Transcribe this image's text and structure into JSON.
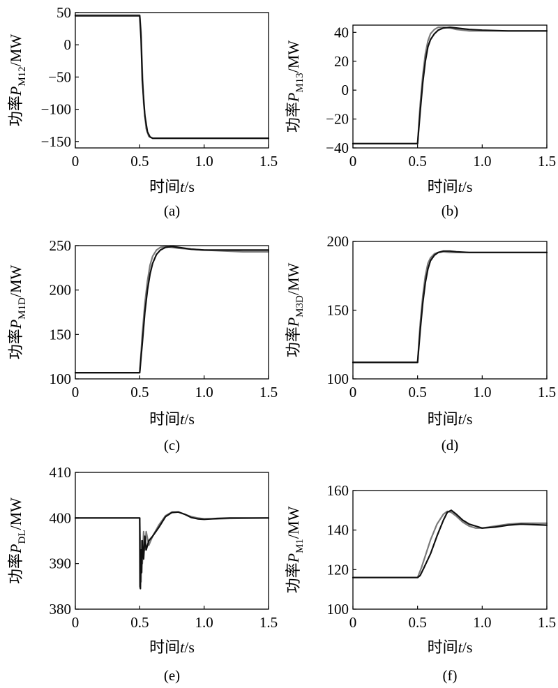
{
  "figure": {
    "xlabel_prefix": "时间",
    "xlabel_var": "t",
    "xlabel_unit": "/s"
  },
  "colors": {
    "series_gray": "#7a7a7a",
    "series_black": "#101010"
  },
  "chart_data": [
    {
      "id": "a",
      "type": "line",
      "caption": "(a)",
      "ylabel": {
        "prefix": "功率",
        "var": "P",
        "sub": "M12",
        "unit": "/MW"
      },
      "xlim": [
        0,
        1.5
      ],
      "ylim": [
        -160,
        50
      ],
      "xticks": [
        0,
        0.5,
        1.0,
        1.5
      ],
      "xtick_labels": [
        "0",
        "0.5",
        "1.0",
        "1.5"
      ],
      "yticks": [
        -150,
        -100,
        -50,
        0,
        50
      ],
      "ytick_labels": [
        "−150",
        "−100",
        "−50",
        "0",
        "50"
      ],
      "series": [
        {
          "color": "#7a7a7a",
          "x": [
            0,
            0.5,
            0.51,
            0.52,
            0.53,
            0.55,
            0.57,
            0.6,
            0.65,
            1.0,
            1.5
          ],
          "y": [
            46,
            46,
            20,
            -40,
            -90,
            -130,
            -142,
            -145,
            -145,
            -145,
            -145
          ]
        },
        {
          "color": "#101010",
          "x": [
            0,
            0.5,
            0.51,
            0.52,
            0.54,
            0.56,
            0.58,
            0.6,
            0.65,
            1.0,
            1.5
          ],
          "y": [
            45,
            45,
            10,
            -55,
            -110,
            -135,
            -143,
            -145,
            -145,
            -145,
            -145
          ]
        }
      ]
    },
    {
      "id": "b",
      "type": "line",
      "caption": "(b)",
      "ylabel": {
        "prefix": "功率",
        "var": "P",
        "sub": "M13",
        "unit": "/MW"
      },
      "xlim": [
        0,
        1.5
      ],
      "ylim": [
        -40,
        45
      ],
      "xticks": [
        0,
        0.5,
        1.0,
        1.5
      ],
      "xtick_labels": [
        "0",
        "0.5",
        "1.0",
        "1.5"
      ],
      "yticks": [
        -40,
        -20,
        0,
        20,
        40
      ],
      "ytick_labels": [
        "−40",
        "−20",
        "0",
        "20",
        "40"
      ],
      "series": [
        {
          "color": "#7a7a7a",
          "x": [
            0,
            0.5,
            0.52,
            0.54,
            0.56,
            0.58,
            0.6,
            0.63,
            0.66,
            0.7,
            0.75,
            0.8,
            0.9,
            1.0,
            1.2,
            1.5
          ],
          "y": [
            -37,
            -37,
            -10,
            10,
            25,
            34,
            39,
            42,
            43.5,
            43.5,
            43,
            42,
            41,
            41,
            41,
            41
          ]
        },
        {
          "color": "#101010",
          "x": [
            0,
            0.5,
            0.52,
            0.54,
            0.56,
            0.58,
            0.6,
            0.63,
            0.66,
            0.7,
            0.75,
            0.8,
            0.9,
            1.0,
            1.2,
            1.5
          ],
          "y": [
            -37,
            -37,
            -15,
            5,
            20,
            30,
            35,
            39,
            41.5,
            43,
            43.5,
            43,
            42,
            41.5,
            41,
            41
          ]
        }
      ]
    },
    {
      "id": "c",
      "type": "line",
      "caption": "(c)",
      "ylabel": {
        "prefix": "功率",
        "var": "P",
        "sub": "M1D",
        "unit": "/MW"
      },
      "xlim": [
        0,
        1.5
      ],
      "ylim": [
        100,
        250
      ],
      "xticks": [
        0,
        0.5,
        1.0,
        1.5
      ],
      "xtick_labels": [
        "0",
        "0.5",
        "1.0",
        "1.5"
      ],
      "yticks": [
        100,
        150,
        200,
        250
      ],
      "ytick_labels": [
        "100",
        "150",
        "200",
        "250"
      ],
      "series": [
        {
          "color": "#7a7a7a",
          "x": [
            0,
            0.5,
            0.52,
            0.54,
            0.56,
            0.58,
            0.6,
            0.63,
            0.66,
            0.7,
            0.75,
            0.8,
            0.9,
            1.0,
            1.3,
            1.5
          ],
          "y": [
            107,
            107,
            150,
            185,
            210,
            228,
            238,
            245,
            248,
            249,
            248,
            247,
            246,
            245,
            243,
            243
          ]
        },
        {
          "color": "#101010",
          "x": [
            0,
            0.5,
            0.52,
            0.54,
            0.56,
            0.58,
            0.6,
            0.63,
            0.66,
            0.7,
            0.75,
            0.8,
            0.9,
            1.0,
            1.3,
            1.5
          ],
          "y": [
            107,
            107,
            140,
            175,
            200,
            218,
            230,
            240,
            245,
            248,
            249,
            248,
            246,
            245,
            245,
            245
          ]
        }
      ]
    },
    {
      "id": "d",
      "type": "line",
      "caption": "(d)",
      "ylabel": {
        "prefix": "功率",
        "var": "P",
        "sub": "M3D",
        "unit": "/MW"
      },
      "xlim": [
        0,
        1.5
      ],
      "ylim": [
        100,
        200
      ],
      "xticks": [
        0,
        0.5,
        1.0,
        1.5
      ],
      "xtick_labels": [
        "0",
        "0.5",
        "1.0",
        "1.5"
      ],
      "yticks": [
        100,
        150,
        200
      ],
      "ytick_labels": [
        "100",
        "150",
        "200"
      ],
      "series": [
        {
          "color": "#7a7a7a",
          "x": [
            0,
            0.5,
            0.52,
            0.54,
            0.56,
            0.58,
            0.6,
            0.63,
            0.66,
            0.7,
            0.75,
            0.8,
            0.9,
            1.0,
            1.5
          ],
          "y": [
            112,
            112,
            140,
            160,
            175,
            184,
            188,
            191,
            192,
            192.5,
            192,
            192,
            192,
            192,
            192
          ]
        },
        {
          "color": "#101010",
          "x": [
            0,
            0.5,
            0.52,
            0.54,
            0.56,
            0.58,
            0.6,
            0.63,
            0.66,
            0.7,
            0.75,
            0.8,
            0.9,
            1.0,
            1.5
          ],
          "y": [
            112,
            112,
            135,
            155,
            170,
            180,
            186,
            190,
            192,
            193,
            193,
            192.5,
            192,
            192,
            192
          ]
        }
      ]
    },
    {
      "id": "e",
      "type": "line",
      "caption": "(e)",
      "ylabel": {
        "prefix": "功率",
        "var": "P",
        "sub": "DL",
        "unit": "/MW"
      },
      "xlim": [
        0,
        1.5
      ],
      "ylim": [
        380,
        410
      ],
      "xticks": [
        0,
        0.5,
        1.0,
        1.5
      ],
      "xtick_labels": [
        "0",
        "0.5",
        "1.0",
        "1.5"
      ],
      "yticks": [
        380,
        390,
        400,
        410
      ],
      "ytick_labels": [
        "380",
        "390",
        "400",
        "410"
      ],
      "series": [
        {
          "color": "#7a7a7a",
          "x": [
            0,
            0.5,
            0.505,
            0.51,
            0.515,
            0.52,
            0.53,
            0.54,
            0.55,
            0.57,
            0.6,
            0.65,
            0.7,
            0.75,
            0.8,
            0.85,
            0.9,
            0.95,
            1.0,
            1.1,
            1.2,
            1.5
          ],
          "y": [
            400,
            400,
            392,
            386,
            395,
            390,
            397,
            393,
            397,
            394,
            396,
            398.5,
            400.5,
            401.3,
            401.3,
            400.8,
            400.3,
            400,
            399.8,
            399.8,
            399.9,
            400
          ]
        },
        {
          "color": "#101010",
          "x": [
            0,
            0.5,
            0.502,
            0.505,
            0.51,
            0.515,
            0.52,
            0.53,
            0.54,
            0.55,
            0.57,
            0.6,
            0.65,
            0.7,
            0.75,
            0.8,
            0.85,
            0.9,
            0.95,
            1.0,
            1.1,
            1.2,
            1.5
          ],
          "y": [
            400,
            400,
            385,
            384.5,
            393,
            388,
            395,
            391,
            396,
            393,
            395,
            396,
            398,
            400.3,
            401.2,
            401.3,
            400.8,
            400.1,
            399.8,
            399.7,
            399.9,
            400,
            400
          ]
        }
      ]
    },
    {
      "id": "f",
      "type": "line",
      "caption": "(f)",
      "ylabel": {
        "prefix": "功率",
        "var": "P",
        "sub": "M1",
        "unit": "/MW"
      },
      "xlim": [
        0,
        1.5
      ],
      "ylim": [
        100,
        160
      ],
      "xticks": [
        0,
        0.5,
        1.0,
        1.5
      ],
      "xtick_labels": [
        "0",
        "0.5",
        "1.0",
        "1.5"
      ],
      "yticks": [
        100,
        120,
        140,
        160
      ],
      "ytick_labels": [
        "100",
        "120",
        "140",
        "160"
      ],
      "series": [
        {
          "color": "#7a7a7a",
          "x": [
            0,
            0.5,
            0.53,
            0.56,
            0.6,
            0.65,
            0.7,
            0.73,
            0.76,
            0.8,
            0.85,
            0.9,
            0.95,
            1.0,
            1.1,
            1.2,
            1.3,
            1.5
          ],
          "y": [
            116,
            116,
            121,
            127,
            135,
            143,
            148,
            149.5,
            149,
            147,
            144,
            142,
            141,
            141,
            142,
            143,
            143.5,
            143.5
          ]
        },
        {
          "color": "#101010",
          "x": [
            0,
            0.5,
            0.52,
            0.55,
            0.6,
            0.65,
            0.7,
            0.73,
            0.76,
            0.8,
            0.85,
            0.9,
            0.95,
            1.0,
            1.1,
            1.2,
            1.3,
            1.5
          ],
          "y": [
            116,
            116,
            117,
            121,
            128,
            137,
            145,
            149,
            150,
            148,
            145,
            143,
            142,
            141,
            141.5,
            142.5,
            143,
            142.5
          ]
        }
      ]
    }
  ]
}
